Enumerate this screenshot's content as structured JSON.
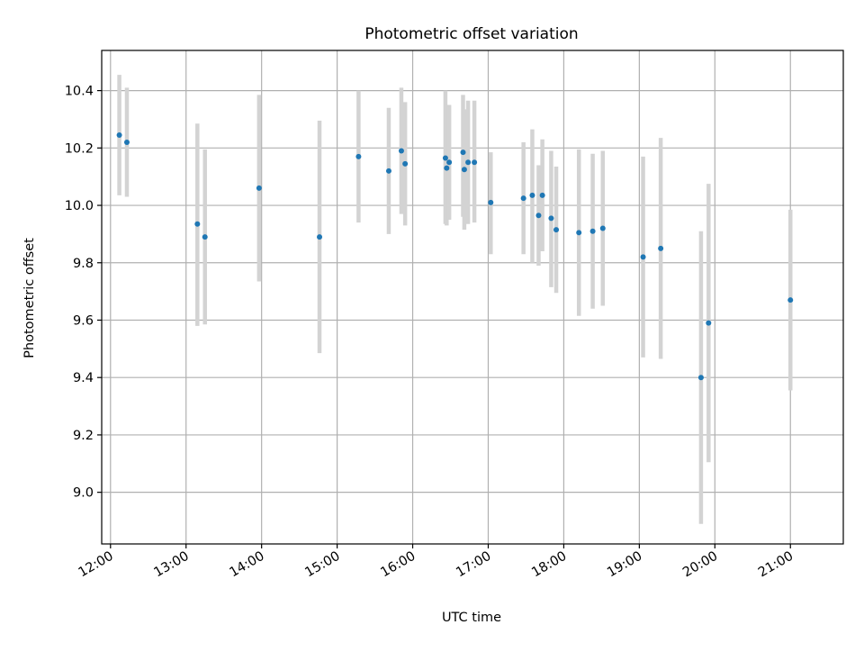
{
  "chart_data": {
    "type": "scatter",
    "title": "Photometric offset variation",
    "xlabel": "UTC time",
    "ylabel": "Photometric offset",
    "x_tick_labels": [
      "12:00",
      "13:00",
      "14:00",
      "15:00",
      "16:00",
      "17:00",
      "18:00",
      "19:00",
      "20:00",
      "21:00"
    ],
    "x_ticks": [
      12,
      13,
      14,
      15,
      16,
      17,
      18,
      19,
      20,
      21
    ],
    "y_ticks": [
      9.0,
      9.2,
      9.4,
      9.6,
      9.8,
      10.0,
      10.2,
      10.4
    ],
    "y_tick_labels": [
      "9.0",
      "9.2",
      "9.4",
      "9.6",
      "9.8",
      "10.0",
      "10.2",
      "10.4"
    ],
    "xlim": [
      "11:53",
      "21:42"
    ],
    "ylim": [
      8.82,
      10.54
    ],
    "grid": true,
    "colors": {
      "point": "#1f77b4",
      "errorbar": "#d3d3d3",
      "grid": "#b0b0b0"
    },
    "x_unit": "UTC time (HH:MM)",
    "points": [
      {
        "x": "12:07",
        "y": 10.245,
        "err_low": 10.035,
        "err_high": 10.455
      },
      {
        "x": "12:13",
        "y": 10.22,
        "err_low": 10.03,
        "err_high": 10.41
      },
      {
        "x": "13:09",
        "y": 9.935,
        "err_low": 9.58,
        "err_high": 10.285
      },
      {
        "x": "13:15",
        "y": 9.89,
        "err_low": 9.585,
        "err_high": 10.195
      },
      {
        "x": "13:58",
        "y": 10.06,
        "err_low": 9.735,
        "err_high": 10.385
      },
      {
        "x": "14:46",
        "y": 9.89,
        "err_low": 9.485,
        "err_high": 10.295
      },
      {
        "x": "15:17",
        "y": 10.17,
        "err_low": 9.94,
        "err_high": 10.4
      },
      {
        "x": "15:41",
        "y": 10.12,
        "err_low": 9.9,
        "err_high": 10.34
      },
      {
        "x": "15:51",
        "y": 10.19,
        "err_low": 9.97,
        "err_high": 10.41
      },
      {
        "x": "15:54",
        "y": 10.145,
        "err_low": 9.93,
        "err_high": 10.36
      },
      {
        "x": "16:26",
        "y": 10.165,
        "err_low": 9.935,
        "err_high": 10.4
      },
      {
        "x": "16:27",
        "y": 10.13,
        "err_low": 9.93,
        "err_high": 10.33
      },
      {
        "x": "16:29",
        "y": 10.15,
        "err_low": 9.95,
        "err_high": 10.35
      },
      {
        "x": "16:40",
        "y": 10.185,
        "err_low": 9.96,
        "err_high": 10.385
      },
      {
        "x": "16:41",
        "y": 10.125,
        "err_low": 9.915,
        "err_high": 10.335
      },
      {
        "x": "16:44",
        "y": 10.15,
        "err_low": 9.935,
        "err_high": 10.365
      },
      {
        "x": "16:49",
        "y": 10.15,
        "err_low": 9.94,
        "err_high": 10.365
      },
      {
        "x": "17:02",
        "y": 10.01,
        "err_low": 9.83,
        "err_high": 10.185
      },
      {
        "x": "17:28",
        "y": 10.025,
        "err_low": 9.83,
        "err_high": 10.22
      },
      {
        "x": "17:35",
        "y": 10.035,
        "err_low": 9.8,
        "err_high": 10.265
      },
      {
        "x": "17:40",
        "y": 9.965,
        "err_low": 9.79,
        "err_high": 10.14
      },
      {
        "x": "17:43",
        "y": 10.035,
        "err_low": 9.84,
        "err_high": 10.23
      },
      {
        "x": "17:50",
        "y": 9.955,
        "err_low": 9.715,
        "err_high": 10.19
      },
      {
        "x": "17:54",
        "y": 9.915,
        "err_low": 9.695,
        "err_high": 10.135
      },
      {
        "x": "18:12",
        "y": 9.905,
        "err_low": 9.615,
        "err_high": 10.195
      },
      {
        "x": "18:23",
        "y": 9.91,
        "err_low": 9.64,
        "err_high": 10.18
      },
      {
        "x": "18:31",
        "y": 9.92,
        "err_low": 9.65,
        "err_high": 10.19
      },
      {
        "x": "19:03",
        "y": 9.82,
        "err_low": 9.47,
        "err_high": 10.17
      },
      {
        "x": "19:17",
        "y": 9.85,
        "err_low": 9.465,
        "err_high": 10.235
      },
      {
        "x": "19:49",
        "y": 9.4,
        "err_low": 8.89,
        "err_high": 9.91
      },
      {
        "x": "19:55",
        "y": 9.59,
        "err_low": 9.105,
        "err_high": 10.075
      },
      {
        "x": "21:00",
        "y": 9.67,
        "err_low": 9.355,
        "err_high": 9.985
      }
    ]
  }
}
